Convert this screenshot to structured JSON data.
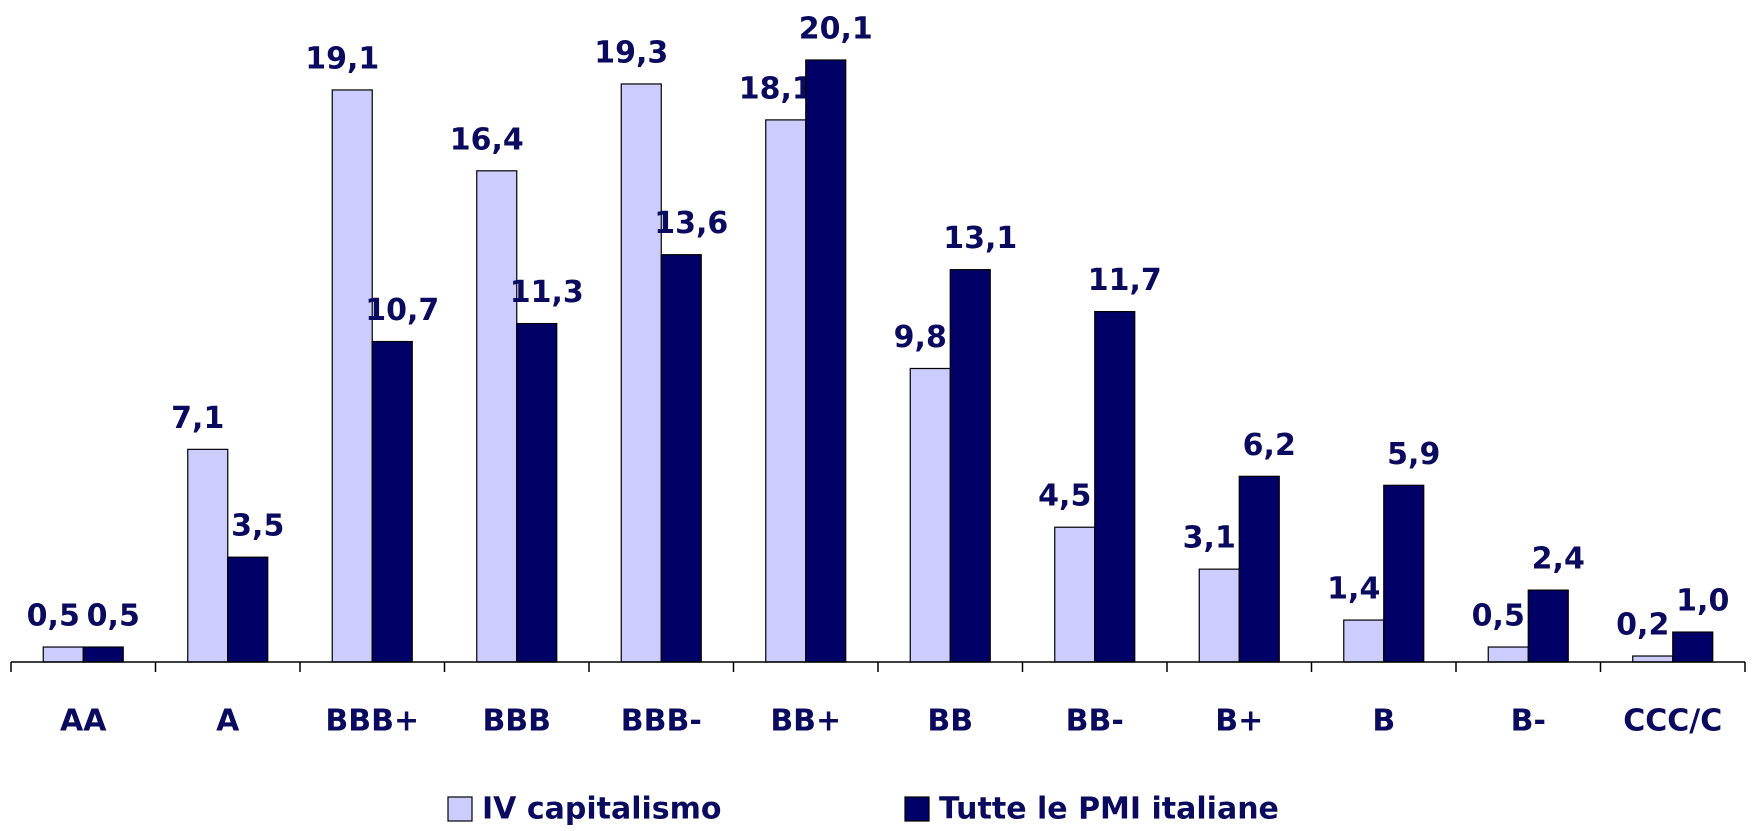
{
  "chart_data": {
    "type": "bar",
    "categories": [
      "AA",
      "A",
      "BBB+",
      "BBB",
      "BBB-",
      "BB+",
      "BB",
      "BB-",
      "B+",
      "B",
      "B-",
      "CCC/C"
    ],
    "series": [
      {
        "name": "IV capitalismo",
        "color": "#ccccff",
        "values": [
          0.5,
          7.1,
          19.1,
          16.4,
          19.3,
          18.1,
          9.8,
          4.5,
          3.1,
          1.4,
          0.5,
          0.2
        ],
        "value_labels": [
          "0,5",
          "7,1",
          "19,1",
          "16,4",
          "19,3",
          "18,1",
          "9,8",
          "4,5",
          "3,1",
          "1,4",
          "0,5",
          "0,2"
        ]
      },
      {
        "name": "Tutte le PMI italiane",
        "color": "#000066",
        "values": [
          0.5,
          3.5,
          10.7,
          11.3,
          13.6,
          20.1,
          13.1,
          11.7,
          6.2,
          5.9,
          2.4,
          1.0
        ],
        "value_labels": [
          "0,5",
          "3,5",
          "10,7",
          "11,3",
          "13,6",
          "20,1",
          "13,1",
          "11,7",
          "6,2",
          "5,9",
          "2,4",
          "1,0"
        ]
      }
    ],
    "legend": "bottom"
  }
}
